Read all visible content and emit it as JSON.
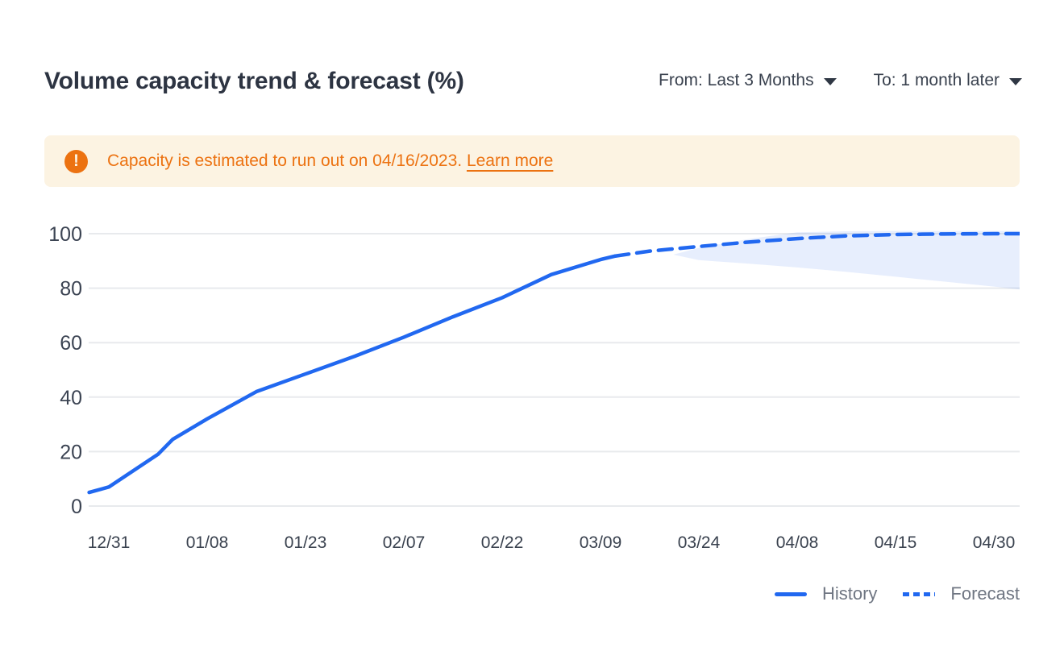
{
  "header": {
    "title": "Volume capacity trend & forecast (%)",
    "from_filter_label": "From: Last 3 Months",
    "to_filter_label": "To: 1 month later"
  },
  "banner": {
    "icon": "exclamation-circle-icon",
    "icon_glyph": "!",
    "message": "Capacity is estimated to run out on 04/16/2023.",
    "link_label": "Learn more",
    "background_color": "#FCF3E2",
    "text_color": "#EC7211"
  },
  "chart_data": {
    "type": "line",
    "title": "Volume capacity trend & forecast (%)",
    "ylabel": "",
    "xlabel": "",
    "x_tick_labels": [
      "12/31",
      "01/08",
      "01/23",
      "02/07",
      "02/22",
      "03/09",
      "03/24",
      "04/08",
      "04/15",
      "04/30"
    ],
    "y_ticks": [
      0,
      20,
      40,
      60,
      80,
      100
    ],
    "ylim": [
      0,
      103
    ],
    "grid": true,
    "legend_position": "bottom-right",
    "x_axis_note": "series x values are fractional indices into x_tick_labels",
    "series": [
      {
        "name": "History",
        "style": "solid",
        "color": "#2168f0",
        "x": [
          -0.2,
          0,
          0.5,
          0.65,
          1,
          1.5,
          2,
          2.5,
          3,
          3.5,
          4,
          4.5,
          5,
          5.15
        ],
        "y": [
          5,
          7,
          19,
          24.5,
          32,
          42,
          48.5,
          55,
          62,
          69.5,
          76.5,
          85,
          90.5,
          91.8
        ]
      },
      {
        "name": "Forecast",
        "style": "dashed",
        "color": "#2168f0",
        "x": [
          5.15,
          5.5,
          6,
          6.5,
          7,
          7.5,
          8,
          8.5,
          9,
          9.26
        ],
        "y": [
          91.8,
          93.6,
          95.3,
          96.9,
          98.2,
          99.2,
          99.7,
          99.9,
          100,
          100
        ]
      },
      {
        "name": "Forecast confidence band",
        "style": "band",
        "color": "rgba(33,104,240,0.11)",
        "x": [
          5.74,
          6,
          6.5,
          7,
          7.5,
          8,
          8.5,
          9,
          9.26
        ],
        "upper": [
          92.3,
          94.8,
          98.0,
          100.5,
          100.9,
          101,
          101,
          101,
          101
        ],
        "lower": [
          92.3,
          90.3,
          89,
          87.6,
          86,
          84.2,
          82.4,
          80.6,
          79.5
        ]
      }
    ]
  },
  "legend": {
    "items": [
      {
        "label": "History",
        "style": "solid"
      },
      {
        "label": "Forecast",
        "style": "dashed"
      }
    ]
  }
}
